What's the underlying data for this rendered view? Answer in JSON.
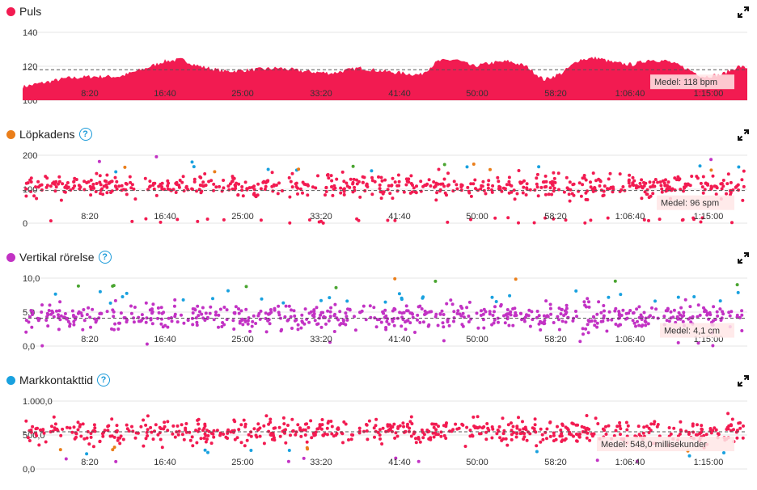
{
  "accent_colors": {
    "red": "#f21b51",
    "orange": "#ea7e1a",
    "purple": "#c232c4",
    "blue": "#19a1df",
    "green": "#4aa531"
  },
  "chart_data": [
    {
      "title": "Puls",
      "type": "area",
      "color": "#f21b51",
      "help": false,
      "yticks": [
        "140",
        "120",
        "100"
      ],
      "ylim": [
        100,
        140
      ],
      "mean_value": 118,
      "mean_label": "Medel: 118 bpm",
      "xticks": [
        "8:20",
        "16:40",
        "25:00",
        "33:20",
        "41:40",
        "50:00",
        "58:20",
        "1:06:40",
        "1:15:00"
      ],
      "x_unit": "minutes",
      "x_range": [
        0,
        82
      ],
      "keypoints": [
        [
          0,
          108
        ],
        [
          2,
          110
        ],
        [
          5,
          113
        ],
        [
          8,
          114
        ],
        [
          11,
          114
        ],
        [
          14,
          119
        ],
        [
          16,
          123
        ],
        [
          18,
          124
        ],
        [
          20,
          120
        ],
        [
          23,
          117
        ],
        [
          26,
          118
        ],
        [
          29,
          119
        ],
        [
          32,
          117
        ],
        [
          35,
          116
        ],
        [
          38,
          119
        ],
        [
          41,
          117
        ],
        [
          43,
          116
        ],
        [
          45,
          115
        ],
        [
          47,
          123
        ],
        [
          49,
          124
        ],
        [
          51,
          120
        ],
        [
          53,
          122
        ],
        [
          55,
          123
        ],
        [
          57,
          120
        ],
        [
          59,
          112
        ],
        [
          61,
          116
        ],
        [
          63,
          124
        ],
        [
          65,
          125
        ],
        [
          67,
          122
        ],
        [
          69,
          121
        ],
        [
          71,
          124
        ],
        [
          73,
          123
        ],
        [
          75,
          119
        ],
        [
          77,
          114
        ],
        [
          79,
          115
        ],
        [
          81,
          120
        ],
        [
          82,
          119
        ]
      ]
    },
    {
      "title": "Löpkadens",
      "type": "scatter",
      "color": "#f21b51",
      "help": true,
      "yticks": [
        "200",
        "100",
        "0"
      ],
      "ylim": [
        0,
        200
      ],
      "mean_value": 96,
      "mean_label": "Medel: 96 spm",
      "xticks": [
        "8:20",
        "16:40",
        "25:00",
        "33:20",
        "41:40",
        "50:00",
        "58:20",
        "1:06:40",
        "1:15:00"
      ],
      "x_range": [
        0,
        82
      ],
      "center": 110,
      "spread": 16,
      "count": 620
    },
    {
      "title": "Vertikal rörelse",
      "type": "scatter",
      "color": "#c232c4",
      "help": true,
      "yticks": [
        "10,0",
        "5,0",
        "0,0"
      ],
      "ylim": [
        0,
        10
      ],
      "mean_value": 4.1,
      "mean_label": "Medel: 4,1 cm",
      "xticks": [
        "8:20",
        "16:40",
        "25:00",
        "33:20",
        "41:40",
        "50:00",
        "58:20",
        "1:06:40",
        "1:15:00"
      ],
      "x_range": [
        0,
        82
      ],
      "center": 4.3,
      "spread": 0.9,
      "count": 620
    },
    {
      "title": "Markkontakttid",
      "type": "scatter",
      "color": "#19a1df",
      "help": true,
      "yticks": [
        "1.000,0",
        "500,0",
        "0,0"
      ],
      "ylim": [
        0,
        1000
      ],
      "mean_value": 548,
      "mean_label": "Medel: 548,0 millisekunder",
      "xticks": [
        "8:20",
        "16:40",
        "25:00",
        "33:20",
        "41:40",
        "50:00",
        "58:20",
        "1:06:40",
        "1:15:00"
      ],
      "x_range": [
        0,
        82
      ],
      "center": 555,
      "spread": 85,
      "count": 620
    }
  ]
}
